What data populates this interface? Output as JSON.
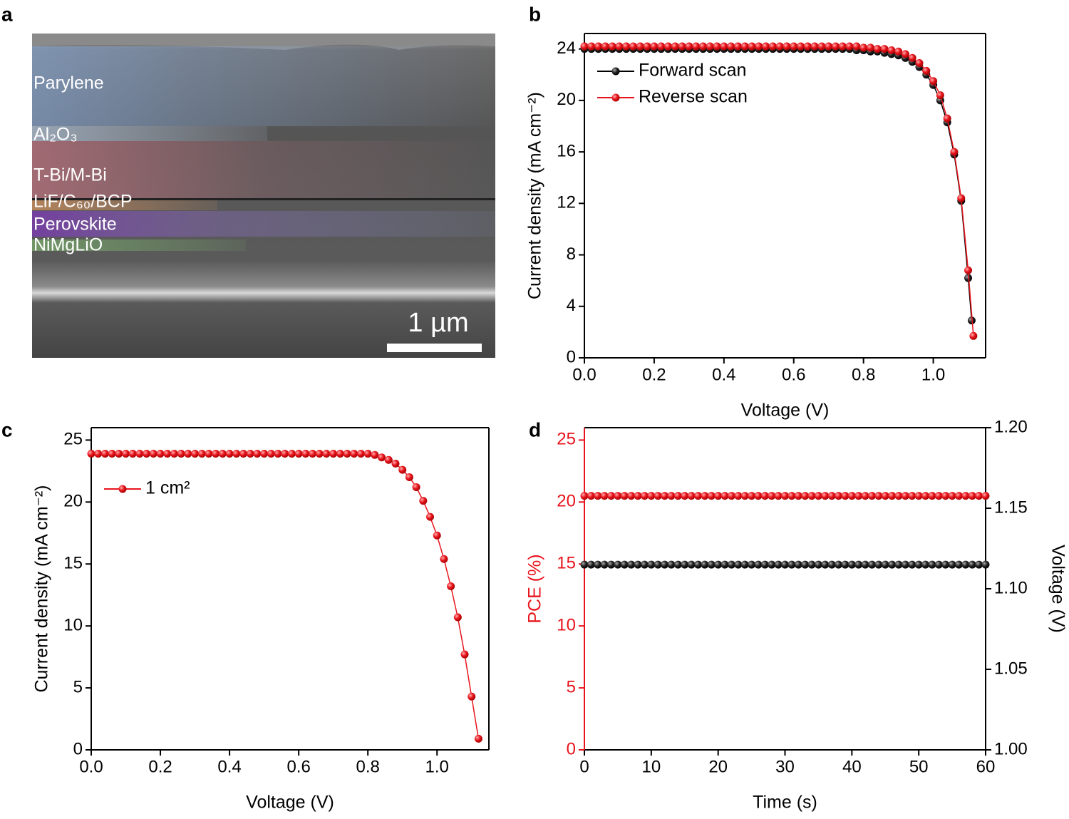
{
  "chart_data": [
    {
      "type": "image",
      "panel": "a",
      "labels": [
        "Parylene",
        "Al₂O₃",
        "T-Bi/M-Bi",
        "LiF/C₆₀/BCP",
        "Perovskite",
        "NiMgLiO"
      ],
      "scale_bar_label": "1 µm"
    },
    {
      "type": "line",
      "panel": "b",
      "xlabel": "Voltage (V)",
      "ylabel": "Current density (mA cm⁻²)",
      "xlim": [
        0,
        1.15
      ],
      "ylim": [
        0,
        25.2
      ],
      "xticks": [
        {
          "value": 0,
          "label": "0.0"
        },
        0.2,
        0.4,
        0.6,
        0.8,
        {
          "value": 1,
          "label": "1.0"
        }
      ],
      "yticks": [
        0,
        4,
        8,
        12,
        16,
        20,
        24
      ],
      "legend": "upper left",
      "series": [
        {
          "name": "Forward scan",
          "color": "#000000",
          "x": [
            0,
            0.02,
            0.04,
            0.06,
            0.08,
            0.1,
            0.12,
            0.14,
            0.16,
            0.18,
            0.2,
            0.22,
            0.24,
            0.26,
            0.28,
            0.3,
            0.32,
            0.34,
            0.36,
            0.38,
            0.4,
            0.42,
            0.44,
            0.46,
            0.48,
            0.5,
            0.52,
            0.54,
            0.56,
            0.58,
            0.6,
            0.62,
            0.64,
            0.66,
            0.68,
            0.7,
            0.72,
            0.74,
            0.76,
            0.78,
            0.8,
            0.82,
            0.84,
            0.86,
            0.88,
            0.9,
            0.92,
            0.94,
            0.96,
            0.98,
            1.0,
            1.02,
            1.04,
            1.06,
            1.08,
            1.1,
            1.11
          ],
          "values": [
            24.0,
            24.0,
            24.0,
            24.0,
            24.0,
            24.0,
            24.0,
            24.0,
            24.0,
            24.0,
            24.0,
            24.0,
            24.0,
            24.0,
            24.0,
            24.0,
            24.0,
            24.0,
            24.0,
            24.0,
            24.0,
            24.0,
            24.0,
            24.0,
            24.0,
            24.0,
            24.0,
            24.0,
            24.0,
            24.0,
            24.0,
            24.0,
            24.0,
            24.0,
            24.0,
            24.0,
            24.0,
            24.0,
            24.0,
            23.9,
            23.9,
            23.8,
            23.8,
            23.7,
            23.6,
            23.5,
            23.3,
            23.0,
            22.6,
            22.0,
            21.2,
            20.0,
            18.3,
            15.8,
            12.2,
            6.2,
            2.9
          ]
        },
        {
          "name": "Reverse scan",
          "color": "#e8141c",
          "x": [
            0,
            0.02,
            0.04,
            0.06,
            0.08,
            0.1,
            0.12,
            0.14,
            0.16,
            0.18,
            0.2,
            0.22,
            0.24,
            0.26,
            0.28,
            0.3,
            0.32,
            0.34,
            0.36,
            0.38,
            0.4,
            0.42,
            0.44,
            0.46,
            0.48,
            0.5,
            0.52,
            0.54,
            0.56,
            0.58,
            0.6,
            0.62,
            0.64,
            0.66,
            0.68,
            0.7,
            0.72,
            0.74,
            0.76,
            0.78,
            0.8,
            0.82,
            0.84,
            0.86,
            0.88,
            0.9,
            0.92,
            0.94,
            0.96,
            0.98,
            1.0,
            1.02,
            1.04,
            1.06,
            1.08,
            1.1,
            1.115
          ],
          "values": [
            24.2,
            24.2,
            24.2,
            24.2,
            24.2,
            24.2,
            24.2,
            24.2,
            24.2,
            24.2,
            24.2,
            24.2,
            24.2,
            24.2,
            24.2,
            24.2,
            24.2,
            24.2,
            24.2,
            24.2,
            24.2,
            24.2,
            24.2,
            24.2,
            24.2,
            24.2,
            24.2,
            24.2,
            24.2,
            24.2,
            24.2,
            24.2,
            24.2,
            24.2,
            24.2,
            24.2,
            24.2,
            24.2,
            24.2,
            24.2,
            24.1,
            24.1,
            24.0,
            24.0,
            23.9,
            23.8,
            23.6,
            23.3,
            22.9,
            22.3,
            21.5,
            20.4,
            18.6,
            16.0,
            12.4,
            6.8,
            1.7
          ]
        }
      ]
    },
    {
      "type": "line",
      "panel": "c",
      "xlabel": "Voltage (V)",
      "ylabel": "Current density (mA cm⁻²)",
      "xlim": [
        0,
        1.15
      ],
      "ylim": [
        0,
        26
      ],
      "xticks": [
        {
          "value": 0,
          "label": "0.0"
        },
        0.2,
        0.4,
        0.6,
        0.8,
        {
          "value": 1,
          "label": "1.0"
        }
      ],
      "yticks": [
        0,
        5,
        10,
        15,
        20,
        25
      ],
      "legend": "upper left",
      "series": [
        {
          "name": "1 cm²",
          "color": "#e8141c",
          "x": [
            0,
            0.02,
            0.04,
            0.06,
            0.08,
            0.1,
            0.12,
            0.14,
            0.16,
            0.18,
            0.2,
            0.22,
            0.24,
            0.26,
            0.28,
            0.3,
            0.32,
            0.34,
            0.36,
            0.38,
            0.4,
            0.42,
            0.44,
            0.46,
            0.48,
            0.5,
            0.52,
            0.54,
            0.56,
            0.58,
            0.6,
            0.62,
            0.64,
            0.66,
            0.68,
            0.7,
            0.72,
            0.74,
            0.76,
            0.78,
            0.8,
            0.82,
            0.84,
            0.86,
            0.88,
            0.9,
            0.92,
            0.94,
            0.96,
            0.98,
            1.0,
            1.02,
            1.04,
            1.06,
            1.08,
            1.1,
            1.12
          ],
          "values": [
            23.9,
            23.9,
            23.9,
            23.9,
            23.9,
            23.9,
            23.9,
            23.9,
            23.9,
            23.9,
            23.9,
            23.9,
            23.9,
            23.9,
            23.9,
            23.9,
            23.9,
            23.9,
            23.9,
            23.9,
            23.9,
            23.9,
            23.9,
            23.9,
            23.9,
            23.9,
            23.9,
            23.9,
            23.9,
            23.9,
            23.9,
            23.9,
            23.9,
            23.9,
            23.9,
            23.9,
            23.9,
            23.9,
            23.9,
            23.9,
            23.9,
            23.8,
            23.6,
            23.4,
            23.1,
            22.6,
            22.0,
            21.2,
            20.1,
            18.8,
            17.3,
            15.4,
            13.2,
            10.7,
            7.7,
            4.3,
            0.9
          ]
        }
      ]
    },
    {
      "type": "line",
      "panel": "d",
      "xlabel": "Time (s)",
      "ylabel": "PCE (%)",
      "y2label": "Voltage (V)",
      "xlim": [
        0,
        60
      ],
      "ylim": [
        0,
        26
      ],
      "y2lim": [
        1.0,
        1.2
      ],
      "xticks": [
        0,
        10,
        20,
        30,
        40,
        50,
        60
      ],
      "yticks": [
        0,
        5,
        10,
        15,
        20,
        25
      ],
      "y2ticks": [
        {
          "value": 1.0,
          "label": "1.00"
        },
        1.05,
        {
          "value": 1.1,
          "label": "1.10"
        },
        1.15,
        {
          "value": 1.2,
          "label": "1.20"
        }
      ],
      "x": [
        0,
        1,
        2,
        3,
        4,
        5,
        6,
        7,
        8,
        9,
        10,
        11,
        12,
        13,
        14,
        15,
        16,
        17,
        18,
        19,
        20,
        21,
        22,
        23,
        24,
        25,
        26,
        27,
        28,
        29,
        30,
        31,
        32,
        33,
        34,
        35,
        36,
        37,
        38,
        39,
        40,
        41,
        42,
        43,
        44,
        45,
        46,
        47,
        48,
        49,
        50,
        51,
        52,
        53,
        54,
        55,
        56,
        57,
        58,
        59,
        60
      ],
      "series": [
        {
          "name": "PCE",
          "color": "#e8141c",
          "axis": "y",
          "values": [
            20.5,
            20.5,
            20.5,
            20.5,
            20.5,
            20.5,
            20.5,
            20.5,
            20.5,
            20.5,
            20.5,
            20.5,
            20.5,
            20.5,
            20.5,
            20.5,
            20.5,
            20.5,
            20.5,
            20.5,
            20.5,
            20.5,
            20.5,
            20.5,
            20.5,
            20.5,
            20.5,
            20.5,
            20.5,
            20.5,
            20.5,
            20.5,
            20.5,
            20.5,
            20.5,
            20.5,
            20.5,
            20.5,
            20.5,
            20.5,
            20.5,
            20.5,
            20.5,
            20.5,
            20.5,
            20.5,
            20.5,
            20.5,
            20.5,
            20.5,
            20.5,
            20.5,
            20.5,
            20.5,
            20.5,
            20.5,
            20.5,
            20.5,
            20.5,
            20.5,
            20.5
          ]
        },
        {
          "name": "Voltage",
          "color": "#000000",
          "axis": "y2",
          "values": [
            1.115,
            1.115,
            1.115,
            1.115,
            1.115,
            1.115,
            1.115,
            1.115,
            1.115,
            1.115,
            1.115,
            1.115,
            1.115,
            1.115,
            1.115,
            1.115,
            1.115,
            1.115,
            1.115,
            1.115,
            1.115,
            1.115,
            1.115,
            1.115,
            1.115,
            1.115,
            1.115,
            1.115,
            1.115,
            1.115,
            1.115,
            1.115,
            1.115,
            1.115,
            1.115,
            1.115,
            1.115,
            1.115,
            1.115,
            1.115,
            1.115,
            1.115,
            1.115,
            1.115,
            1.115,
            1.115,
            1.115,
            1.115,
            1.115,
            1.115,
            1.115,
            1.115,
            1.115,
            1.115,
            1.115,
            1.115,
            1.115,
            1.115,
            1.115,
            1.115,
            1.115
          ]
        }
      ]
    }
  ]
}
